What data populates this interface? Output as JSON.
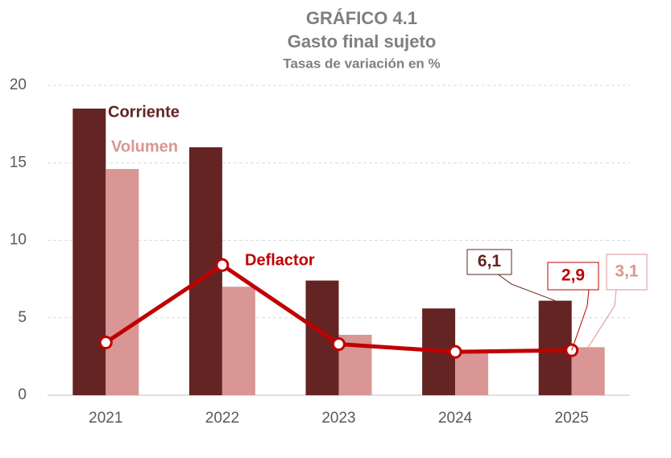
{
  "chart_data": {
    "type": "bar-line",
    "title": "GRÁFICO 4.1",
    "subtitle": "Gasto final sujeto",
    "units_label": "Tasas de variación en %",
    "categories": [
      "2021",
      "2022",
      "2023",
      "2024",
      "2025"
    ],
    "series": [
      {
        "name": "Corriente",
        "type": "bar",
        "color": "#632423",
        "values": [
          18.5,
          16.0,
          7.4,
          5.6,
          6.1
        ],
        "value_labels": [
          null,
          null,
          null,
          null,
          "6,1"
        ]
      },
      {
        "name": "Volumen",
        "type": "bar",
        "color": "#d99694",
        "values": [
          14.6,
          7.0,
          3.9,
          2.8,
          3.1
        ],
        "value_labels": [
          null,
          null,
          null,
          null,
          "3,1"
        ]
      },
      {
        "name": "Deflactor",
        "type": "line",
        "color": "#c00000",
        "values": [
          3.4,
          8.4,
          3.3,
          2.8,
          2.9
        ],
        "value_labels": [
          null,
          null,
          null,
          null,
          "2,9"
        ]
      }
    ],
    "ylim": [
      0,
      20
    ],
    "yticks": [
      0,
      5,
      10,
      15,
      20
    ],
    "grid": true
  }
}
